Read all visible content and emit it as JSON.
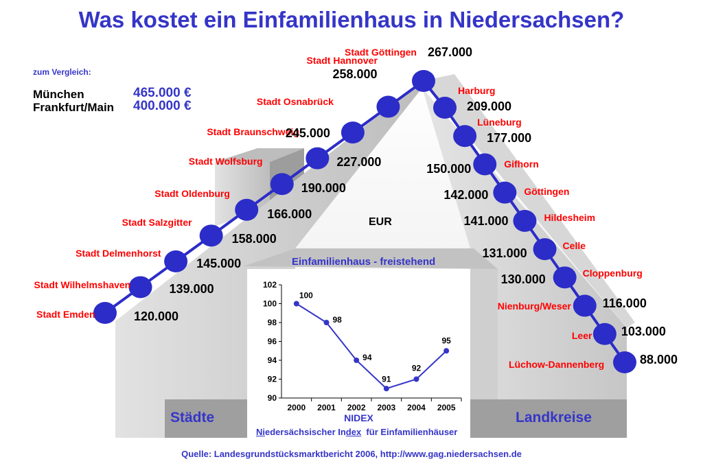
{
  "title": "Was kostet ein Einfamilienhaus in Niedersachsen?",
  "comparison": {
    "heading": "zum Vergleich:",
    "items": [
      {
        "name": "München",
        "value": "465.000 €"
      },
      {
        "name": "Frankfurt/Main",
        "value": "400.000 €"
      }
    ]
  },
  "unit_label": "EUR",
  "sections": {
    "left": "Städte",
    "right": "Landkreise"
  },
  "source": "Quelle: Landesgrundstücksmarktbericht 2006, http://www.gag.niedersachsen.de",
  "nidex": {
    "label": "NIDEX",
    "desc_parts": [
      "Ni",
      "edersächsischer In",
      "dex",
      "  für Einfamilienhäuser"
    ]
  },
  "colors": {
    "title": "#3535c8",
    "place": "#ff0000",
    "dot": "#2c2cc8",
    "value": "#000000"
  },
  "chart_data": [
    {
      "type": "scatter",
      "title": "",
      "ylabel": "EUR",
      "series": [
        {
          "name": "Städte",
          "points": [
            {
              "label": "Stadt Emden",
              "value": 120000,
              "display": "120.000"
            },
            {
              "label": "Stadt Wilhelmshaven",
              "value": 139000,
              "display": "139.000"
            },
            {
              "label": "Stadt Delmenhorst",
              "value": 145000,
              "display": "145.000"
            },
            {
              "label": "Stadt Salzgitter",
              "value": 158000,
              "display": "158.000"
            },
            {
              "label": "Stadt Oldenburg",
              "value": 166000,
              "display": "166.000"
            },
            {
              "label": "Stadt Wolfsburg",
              "value": 190000,
              "display": "190.000"
            },
            {
              "label": "Stadt Braunschweig",
              "value": 227000,
              "display": "227.000"
            },
            {
              "label": "Stadt Osnabrück",
              "value": 245000,
              "display": "245.000"
            },
            {
              "label": "Stadt Hannover",
              "value": 258000,
              "display": "258.000"
            },
            {
              "label": "Stadt Göttingen",
              "value": 267000,
              "display": "267.000"
            }
          ]
        },
        {
          "name": "Landkreise",
          "points": [
            {
              "label": "Harburg",
              "value": 209000,
              "display": "209.000"
            },
            {
              "label": "Lüneburg",
              "value": 177000,
              "display": "177.000"
            },
            {
              "label": "Gifhorn",
              "value": 150000,
              "display": "150.000"
            },
            {
              "label": "Göttingen",
              "value": 142000,
              "display": "142.000"
            },
            {
              "label": "Hildesheim",
              "value": 141000,
              "display": "141.000"
            },
            {
              "label": "Celle",
              "value": 131000,
              "display": "131.000"
            },
            {
              "label": "Cloppenburg",
              "value": 130000,
              "display": "130.000"
            },
            {
              "label": "Nienburg/Weser",
              "value": 116000,
              "display": "116.000"
            },
            {
              "label": "Leer",
              "value": 103000,
              "display": "103.000"
            },
            {
              "label": "Lüchow-Dannenberg",
              "value": 88000,
              "display": "88.000"
            }
          ]
        }
      ]
    },
    {
      "type": "line",
      "title": "Einfamilienhaus - freistehend",
      "xlabel": "NIDEX",
      "ylabel": "",
      "categories": [
        "2000",
        "2001",
        "2002",
        "2003",
        "2004",
        "2005"
      ],
      "values": [
        100,
        98,
        94,
        91,
        92,
        95
      ],
      "ylim": [
        90,
        102
      ],
      "yticks": [
        90,
        92,
        94,
        96,
        98,
        100,
        102
      ],
      "grid": false
    }
  ]
}
